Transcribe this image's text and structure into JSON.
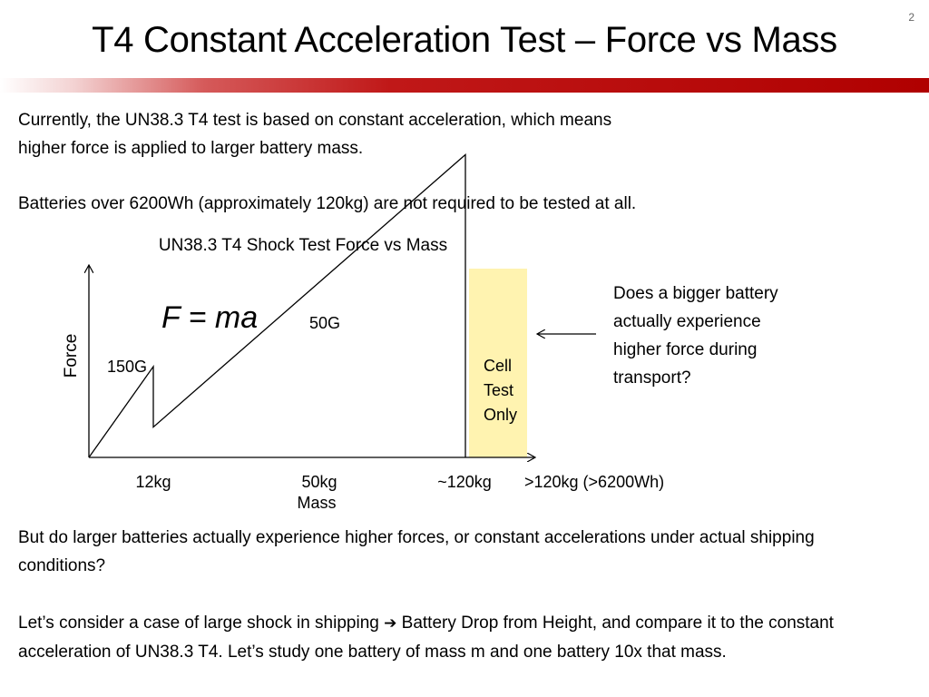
{
  "slide": {
    "number": "2",
    "title": "T4 Constant Acceleration Test – Force vs Mass",
    "colors": {
      "accent_bar": "#b00000",
      "highlight": "#fff3b0"
    }
  },
  "body": {
    "p1_line1": "Currently, the UN38.3 T4 test is based on constant acceleration, which means",
    "p1_line2": "higher force is applied to larger battery mass.",
    "p2": "Batteries over 6200Wh (approximately 120kg) are not required to be tested at all.",
    "p3": "But do larger batteries actually experience higher forces, or constant accelerations under actual shipping conditions?",
    "p4_before": "Let’s consider a case of large shock in shipping",
    "p4_arrow_icon": "right-arrow-icon",
    "p4_after": "Battery Drop from Height, and compare it to the constant acceleration of UN38.3 T4. Let’s study one battery of mass m and one battery 10x that mass."
  },
  "side_question": {
    "line1": "Does a bigger battery",
    "line2": "actually experience",
    "line3": "higher force during",
    "line4": "transport?"
  },
  "chart_data": {
    "type": "line",
    "title": "UN38.3 T4 Shock Test Force vs Mass",
    "xlabel": "Mass",
    "ylabel": "Force",
    "x_tick_labels": [
      "12kg",
      "50kg",
      "~120kg",
      ">120kg (>6200Wh)"
    ],
    "formula": "F = ma",
    "series": [
      {
        "name": "150G",
        "x": [
          0,
          12
        ],
        "accel_g": 150
      },
      {
        "name": "50G",
        "x": [
          12,
          120
        ],
        "accel_g": 50
      }
    ],
    "highlight_region": {
      "x_from": 120,
      "label_lines": [
        "Cell",
        "Test",
        "Only"
      ]
    },
    "grid": false
  }
}
